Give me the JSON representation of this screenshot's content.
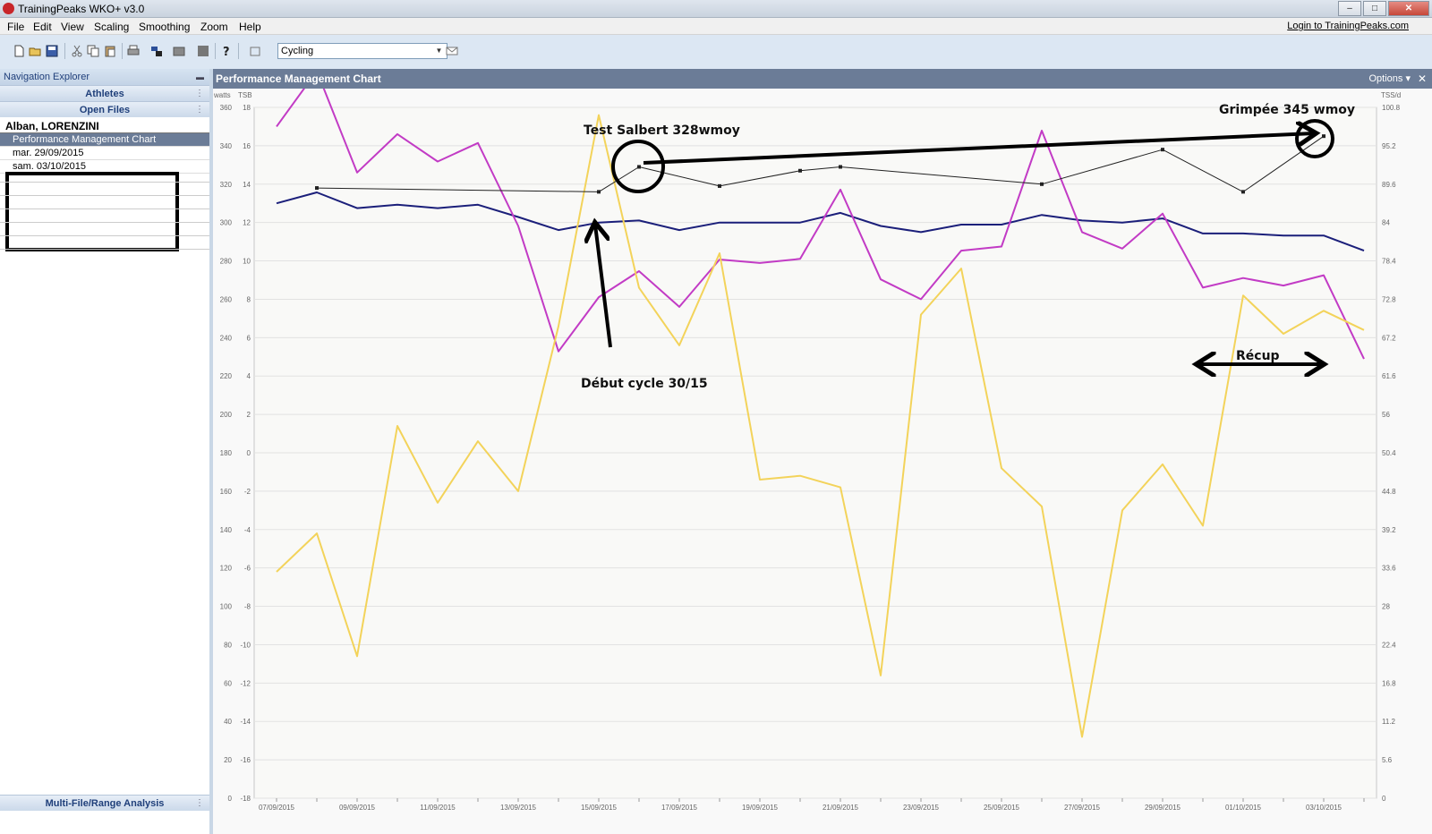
{
  "window": {
    "title": "TrainingPeaks WKO+ v3.0"
  },
  "menu": [
    "File",
    "Edit",
    "View",
    "Scaling",
    "Smoothing",
    "Zoom",
    "Help"
  ],
  "login_link": "Login to TrainingPeaks.com",
  "toolbar": {
    "sport_select": "Cycling"
  },
  "nav": {
    "header": "Navigation Explorer",
    "athletes": "Athletes",
    "open_files": "Open Files",
    "athlete_name": "Alban, LORENZINI",
    "files": [
      "Performance Management Chart",
      "mar. 29/09/2015",
      "sam. 03/10/2015"
    ],
    "bottom_section": "Multi-File/Range Analysis"
  },
  "chart_panel": {
    "title": "Performance Management Chart",
    "options": "Options"
  },
  "colors": {
    "ctl": "#1b1f7a",
    "atl": "#c23bc5",
    "tsb": "#f3d35a",
    "power": "#222222",
    "header": "#6b7c97"
  },
  "chart_data": {
    "type": "line",
    "axes": {
      "left_watts": {
        "label": "watts",
        "min": 0,
        "max": 360,
        "ticks": [
          0,
          20,
          40,
          60,
          80,
          100,
          120,
          140,
          160,
          180,
          200,
          220,
          240,
          260,
          280,
          300,
          320,
          340,
          360
        ]
      },
      "left_tsb": {
        "label": "TSB",
        "min": -18,
        "max": 18,
        "ticks": [
          -18,
          -16,
          -14,
          -12,
          -10,
          -8,
          -6,
          -4,
          -2,
          0,
          2,
          4,
          6,
          8,
          10,
          12,
          14,
          16,
          18
        ]
      },
      "right_tss": {
        "label": "TSS/d",
        "min": 0,
        "max": 100.8,
        "ticks": [
          0,
          5.6,
          11.2,
          16.8,
          22.4,
          28,
          33.6,
          39.2,
          44.8,
          50.4,
          56,
          61.6,
          67.2,
          72.8,
          78.4,
          84,
          89.6,
          95.2,
          100.8
        ]
      }
    },
    "x_tick_labels": [
      "07/09/2015",
      "09/09/2015",
      "11/09/2015",
      "13/09/2015",
      "15/09/2015",
      "17/09/2015",
      "19/09/2015",
      "21/09/2015",
      "23/09/2015",
      "25/09/2015",
      "27/09/2015",
      "29/09/2015",
      "01/10/2015",
      "03/10/2015"
    ],
    "day_count": 28,
    "series": [
      {
        "key": "ctl",
        "axis": "right_tss",
        "points": [
          [
            0,
            86.8
          ],
          [
            1,
            88.4
          ],
          [
            2,
            86.1
          ],
          [
            3,
            86.6
          ],
          [
            4,
            86.1
          ],
          [
            5,
            86.6
          ],
          [
            6,
            84.8
          ],
          [
            7,
            82.9
          ],
          [
            8,
            84.0
          ],
          [
            9,
            84.3
          ],
          [
            10,
            82.9
          ],
          [
            11,
            84.0
          ],
          [
            12,
            84.0
          ],
          [
            13,
            84.0
          ],
          [
            14,
            85.4
          ],
          [
            15,
            83.5
          ],
          [
            16,
            82.6
          ],
          [
            17,
            83.7
          ],
          [
            18,
            83.7
          ],
          [
            19,
            85.1
          ],
          [
            20,
            84.3
          ],
          [
            21,
            84.0
          ],
          [
            22,
            84.6
          ],
          [
            23,
            82.4
          ],
          [
            24,
            82.4
          ],
          [
            25,
            82.1
          ],
          [
            26,
            82.1
          ],
          [
            27,
            79.9
          ]
        ]
      },
      {
        "key": "atl",
        "axis": "right_tss",
        "points": [
          [
            0,
            98.0
          ],
          [
            1,
            106.1
          ],
          [
            2,
            91.3
          ],
          [
            3,
            96.9
          ],
          [
            4,
            92.9
          ],
          [
            5,
            95.6
          ],
          [
            6,
            83.5
          ],
          [
            7,
            65.2
          ],
          [
            8,
            73.1
          ],
          [
            9,
            76.9
          ],
          [
            10,
            71.7
          ],
          [
            11,
            78.6
          ],
          [
            12,
            78.1
          ],
          [
            13,
            78.7
          ],
          [
            14,
            88.8
          ],
          [
            15,
            75.7
          ],
          [
            16,
            72.8
          ],
          [
            17,
            79.9
          ],
          [
            18,
            80.5
          ],
          [
            19,
            97.4
          ],
          [
            20,
            82.6
          ],
          [
            21,
            80.2
          ],
          [
            22,
            85.3
          ],
          [
            23,
            74.5
          ],
          [
            24,
            75.9
          ],
          [
            25,
            74.8
          ],
          [
            26,
            76.3
          ],
          [
            27,
            64.1
          ]
        ]
      },
      {
        "key": "tsb",
        "axis": "left_tsb",
        "points": [
          [
            0,
            -6.2
          ],
          [
            1,
            -4.2
          ],
          [
            2,
            -10.6
          ],
          [
            3,
            1.4
          ],
          [
            4,
            -2.6
          ],
          [
            5,
            0.6
          ],
          [
            6,
            -2.0
          ],
          [
            7,
            6.6
          ],
          [
            8,
            17.6
          ],
          [
            9,
            8.6
          ],
          [
            10,
            5.6
          ],
          [
            11,
            10.4
          ],
          [
            12,
            -1.4
          ],
          [
            13,
            -1.2
          ],
          [
            14,
            -1.8
          ],
          [
            15,
            -11.6
          ],
          [
            16,
            7.2
          ],
          [
            17,
            9.6
          ],
          [
            18,
            -0.8
          ],
          [
            19,
            -2.8
          ],
          [
            20,
            -14.8
          ],
          [
            21,
            -3.0
          ],
          [
            22,
            -0.6
          ],
          [
            23,
            -3.8
          ],
          [
            24,
            8.2
          ],
          [
            25,
            6.2
          ],
          [
            26,
            7.4
          ],
          [
            27,
            6.4
          ]
        ]
      },
      {
        "key": "power",
        "axis": "left_watts",
        "markers": true,
        "points": [
          [
            1,
            318
          ],
          [
            8,
            316
          ],
          [
            9,
            329
          ],
          [
            11,
            319
          ],
          [
            13,
            327
          ],
          [
            14,
            329
          ],
          [
            19,
            320
          ],
          [
            22,
            338
          ],
          [
            24,
            316
          ],
          [
            26,
            345
          ]
        ]
      }
    ]
  },
  "annotations": {
    "test": "Test Salbert 328wmoy",
    "climb": "Grimpée 345 wmoy",
    "start": "Début cycle 30/15",
    "recovery": "Récup"
  }
}
